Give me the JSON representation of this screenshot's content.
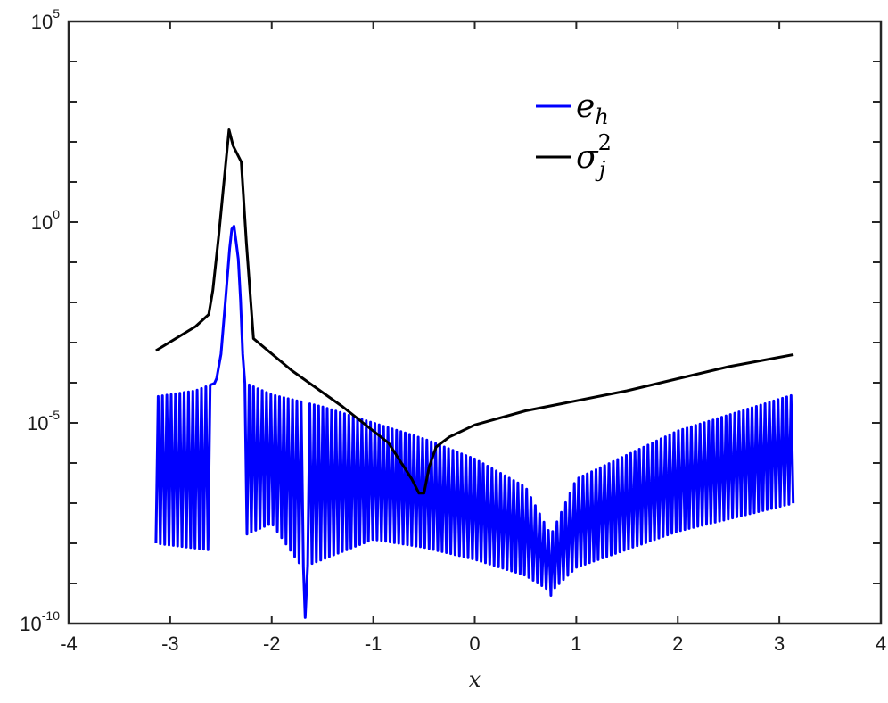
{
  "chart_data": {
    "type": "line",
    "xlabel": "x",
    "ylabel": "",
    "xlim": [
      -4,
      4
    ],
    "ylim_log10": [
      -10,
      5
    ],
    "y_scale": "log",
    "grid": false,
    "legend_placement": "top-center",
    "x_ticks": [
      "-4",
      "-3",
      "-2",
      "-1",
      "0",
      "1",
      "2",
      "3",
      "4"
    ],
    "y_ticks": [
      {
        "value": -10,
        "base": "10",
        "exp": "-10"
      },
      {
        "value": -5,
        "base": "10",
        "exp": "-5"
      },
      {
        "value": 0,
        "base": "10",
        "exp": "0"
      },
      {
        "value": 5,
        "base": "10",
        "exp": "5"
      }
    ],
    "series": [
      {
        "name": "sigma_j^2",
        "legend": {
          "base": "σ",
          "sup": "2",
          "sub": "j"
        },
        "color": "#000000",
        "x": [
          -3.14,
          -2.75,
          -2.62,
          -2.58,
          -2.52,
          -2.47,
          -2.42,
          -2.38,
          -2.3,
          -2.25,
          -2.18,
          -1.8,
          -1.3,
          -0.85,
          -0.62,
          -0.55,
          -0.5,
          -0.45,
          -0.38,
          -0.25,
          0.0,
          0.5,
          1.5,
          2.5,
          3.14
        ],
        "y_log10": [
          -3.2,
          -2.6,
          -2.3,
          -1.7,
          -0.3,
          1.0,
          2.3,
          1.9,
          1.5,
          -0.5,
          -2.9,
          -3.7,
          -4.6,
          -5.5,
          -6.4,
          -6.75,
          -6.75,
          -6.1,
          -5.6,
          -5.35,
          -5.05,
          -4.7,
          -4.2,
          -3.6,
          -3.3
        ]
      },
      {
        "name": "e_h",
        "legend": {
          "base": "e",
          "sub": "h"
        },
        "color": "#0000ff",
        "envelope": {
          "upper_x": [
            -3.14,
            -2.75,
            -2.55,
            -2.5,
            -2.45,
            -2.42,
            -2.4,
            -2.38,
            -2.36,
            -2.32,
            -2.29,
            -2.27,
            -2.0,
            -1.5,
            -1.0,
            -0.5,
            0.0,
            0.5,
            0.75,
            1.0,
            2.0,
            3.14
          ],
          "upper_y_log10": [
            -4.35,
            -4.2,
            -4.0,
            -3.3,
            -1.8,
            -0.8,
            -0.3,
            0.05,
            -0.3,
            -1.1,
            -3.1,
            -4.0,
            -4.3,
            -4.6,
            -5.0,
            -5.4,
            -5.9,
            -6.6,
            -7.8,
            -6.4,
            -5.2,
            -4.3
          ],
          "lower_x": [
            -3.14,
            -2.5,
            -2.27,
            -2.0,
            -1.7,
            -1.0,
            -0.5,
            0.0,
            0.5,
            0.75,
            1.0,
            2.0,
            3.14
          ],
          "lower_y_log10": [
            -8.0,
            -8.2,
            -7.8,
            -7.5,
            -8.6,
            -7.9,
            -8.1,
            -8.4,
            -8.8,
            -9.2,
            -8.6,
            -7.7,
            -7.0
          ],
          "spikes": [
            {
              "x": -1.67,
              "y_log10": -9.85
            },
            {
              "x": 0.75,
              "y_log10": -9.3
            }
          ],
          "oscillation_period": 0.0427
        }
      }
    ]
  }
}
